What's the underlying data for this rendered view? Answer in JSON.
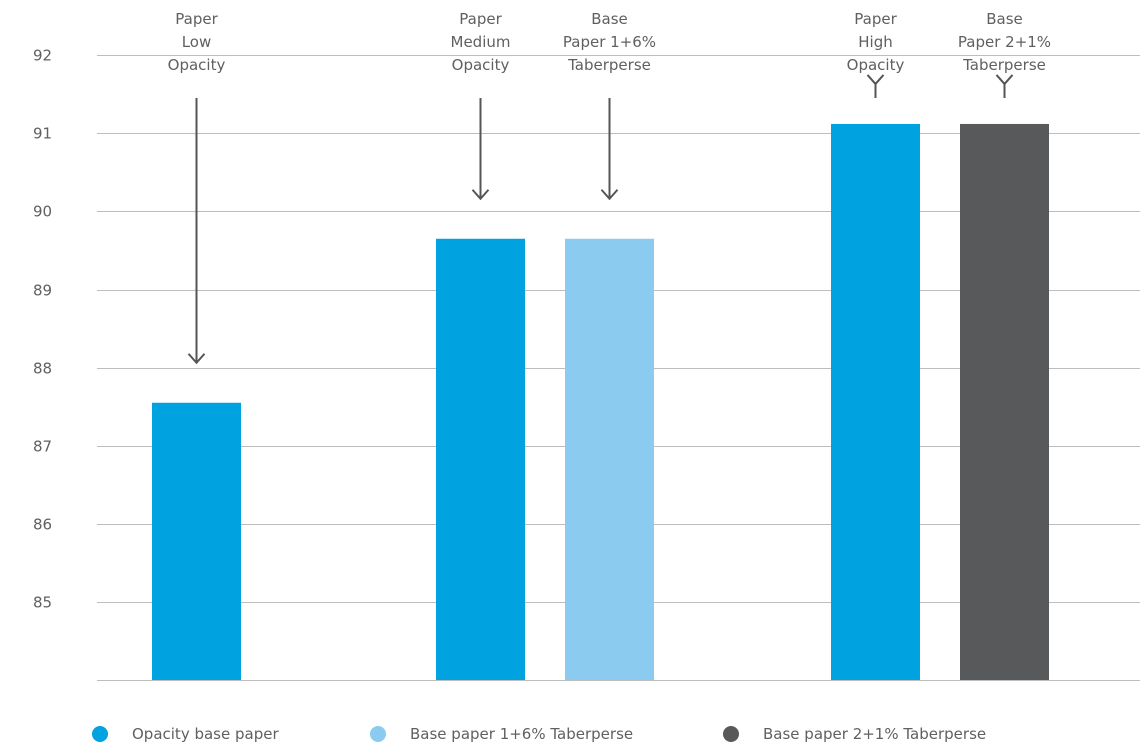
{
  "chart_data": {
    "type": "bar",
    "title": "",
    "xlabel": "",
    "ylabel": "",
    "ylim": [
      84,
      92.4
    ],
    "yticks": [
      85,
      86,
      87,
      88,
      89,
      90,
      91,
      92
    ],
    "grid": true,
    "legend_position": "bottom",
    "colors": {
      "opacity_base": "#00a3e0",
      "base_1_6": "#8bcbef",
      "base_2_1": "#58595b"
    },
    "groups": [
      {
        "bars": [
          {
            "series": "Opacity base paper",
            "value": 87.55,
            "color": "#00a3e0",
            "annotation": [
              "Paper",
              "Low",
              "Opacity"
            ]
          }
        ]
      },
      {
        "bars": [
          {
            "series": "Opacity base paper",
            "value": 89.65,
            "color": "#00a3e0",
            "annotation": [
              "Paper",
              "Medium",
              "Opacity"
            ]
          },
          {
            "series": "Base paper 1+6% Taberperse",
            "value": 89.65,
            "color": "#8bcbef",
            "annotation": [
              "Base",
              "Paper 1+6%",
              "Taberperse"
            ]
          }
        ]
      },
      {
        "bars": [
          {
            "series": "Opacity base paper",
            "value": 91.12,
            "color": "#00a3e0",
            "annotation": [
              "Paper",
              "High",
              "Opacity"
            ]
          },
          {
            "series": "Base paper 2+1% Taberperse",
            "value": 91.12,
            "color": "#58595b",
            "annotation": [
              "Base",
              "Paper 2+1%",
              "Taberperse"
            ]
          }
        ]
      }
    ],
    "legend": [
      {
        "label": "Opacity base paper",
        "color": "#00a3e0"
      },
      {
        "label": "Base paper 1+6% Taberperse",
        "color": "#8bcbef"
      },
      {
        "label": "Base paper 2+1% Taberperse",
        "color": "#58595b"
      }
    ]
  }
}
